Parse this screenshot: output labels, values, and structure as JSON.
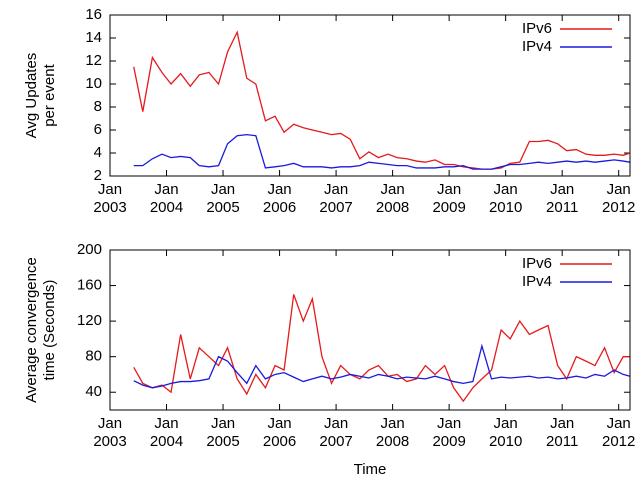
{
  "chart_data": [
    {
      "type": "line",
      "ylabel": [
        "Avg Updates",
        "per event"
      ],
      "legend": "top-right",
      "grid": false,
      "xlim": [
        2003,
        2012.2
      ],
      "ylim": [
        2,
        16
      ],
      "xticks": [
        {
          "value": 2003,
          "label": "Jan 2003"
        },
        {
          "value": 2004,
          "label": "Jan 2004"
        },
        {
          "value": 2005,
          "label": "Jan 2005"
        },
        {
          "value": 2006,
          "label": "Jan 2006"
        },
        {
          "value": 2007,
          "label": "Jan 2007"
        },
        {
          "value": 2008,
          "label": "Jan 2008"
        },
        {
          "value": 2009,
          "label": "Jan 2009"
        },
        {
          "value": 2010,
          "label": "Jan 2010"
        },
        {
          "value": 2011,
          "label": "Jan 2011"
        },
        {
          "value": 2012,
          "label": "Jan 2012"
        }
      ],
      "yticks": [
        2,
        4,
        6,
        8,
        10,
        12,
        14,
        16
      ],
      "x": [
        2003.42,
        2003.58,
        2003.75,
        2003.92,
        2004.08,
        2004.25,
        2004.42,
        2004.58,
        2004.75,
        2004.92,
        2005.08,
        2005.25,
        2005.42,
        2005.58,
        2005.75,
        2005.92,
        2006.08,
        2006.25,
        2006.42,
        2006.58,
        2006.75,
        2006.92,
        2007.08,
        2007.25,
        2007.42,
        2007.58,
        2007.75,
        2007.92,
        2008.08,
        2008.25,
        2008.42,
        2008.58,
        2008.75,
        2008.92,
        2009.08,
        2009.25,
        2009.42,
        2009.58,
        2009.75,
        2009.92,
        2010.08,
        2010.25,
        2010.42,
        2010.58,
        2010.75,
        2010.92,
        2011.08,
        2011.25,
        2011.42,
        2011.58,
        2011.75,
        2011.92,
        2012.08,
        2012.2
      ],
      "series": [
        {
          "name": "IPv6",
          "color": "#e41a1c",
          "values": [
            11.5,
            7.6,
            12.3,
            11,
            10,
            10.9,
            9.8,
            10.8,
            11,
            10,
            12.8,
            14.5,
            10.5,
            10,
            6.8,
            7.2,
            5.8,
            6.5,
            6.2,
            6,
            5.8,
            5.6,
            5.7,
            5.2,
            3.5,
            4.1,
            3.6,
            3.9,
            3.6,
            3.5,
            3.3,
            3.2,
            3.4,
            3,
            3,
            2.8,
            2.7,
            2.6,
            2.6,
            2.7,
            3.1,
            3.2,
            5,
            5,
            5.1,
            4.8,
            4.2,
            4.3,
            3.9,
            3.8,
            3.8,
            3.9,
            3.8,
            4.0
          ]
        },
        {
          "name": "IPv4",
          "color": "#1a1adf",
          "values": [
            2.9,
            2.9,
            3.5,
            3.9,
            3.6,
            3.7,
            3.6,
            2.9,
            2.8,
            2.9,
            4.8,
            5.5,
            5.6,
            5.5,
            2.7,
            2.8,
            2.9,
            3.1,
            2.8,
            2.8,
            2.8,
            2.7,
            2.8,
            2.8,
            2.9,
            3.2,
            3.1,
            3.0,
            2.9,
            2.9,
            2.7,
            2.7,
            2.7,
            2.8,
            2.8,
            2.9,
            2.6,
            2.6,
            2.6,
            2.8,
            3.0,
            3.0,
            3.1,
            3.2,
            3.1,
            3.2,
            3.3,
            3.2,
            3.3,
            3.2,
            3.3,
            3.4,
            3.3,
            3.2
          ]
        }
      ]
    },
    {
      "type": "line",
      "ylabel": [
        "Average convergence",
        "time (Seconds)"
      ],
      "xlabel": "Time",
      "legend": "top-right",
      "grid": false,
      "xlim": [
        2003,
        2012.2
      ],
      "ylim": [
        20,
        200
      ],
      "xticks": [
        {
          "value": 2003,
          "label": "Jan 2003"
        },
        {
          "value": 2004,
          "label": "Jan 2004"
        },
        {
          "value": 2005,
          "label": "Jan 2005"
        },
        {
          "value": 2006,
          "label": "Jan 2006"
        },
        {
          "value": 2007,
          "label": "Jan 2007"
        },
        {
          "value": 2008,
          "label": "Jan 2008"
        },
        {
          "value": 2009,
          "label": "Jan 2009"
        },
        {
          "value": 2010,
          "label": "Jan 2010"
        },
        {
          "value": 2011,
          "label": "Jan 2011"
        },
        {
          "value": 2012,
          "label": "Jan 2012"
        }
      ],
      "yticks": [
        40,
        80,
        120,
        160,
        200
      ],
      "x": [
        2003.42,
        2003.58,
        2003.75,
        2003.92,
        2004.08,
        2004.25,
        2004.42,
        2004.58,
        2004.75,
        2004.92,
        2005.08,
        2005.25,
        2005.42,
        2005.58,
        2005.75,
        2005.92,
        2006.08,
        2006.25,
        2006.42,
        2006.58,
        2006.75,
        2006.92,
        2007.08,
        2007.25,
        2007.42,
        2007.58,
        2007.75,
        2007.92,
        2008.08,
        2008.25,
        2008.42,
        2008.58,
        2008.75,
        2008.92,
        2009.08,
        2009.25,
        2009.42,
        2009.58,
        2009.75,
        2009.92,
        2010.08,
        2010.25,
        2010.42,
        2010.58,
        2010.75,
        2010.92,
        2011.08,
        2011.25,
        2011.42,
        2011.58,
        2011.75,
        2011.92,
        2012.08,
        2012.2
      ],
      "series": [
        {
          "name": "IPv6",
          "color": "#e41a1c",
          "values": [
            68,
            50,
            45,
            48,
            40,
            105,
            55,
            90,
            80,
            70,
            90,
            55,
            38,
            60,
            45,
            70,
            65,
            150,
            120,
            145,
            80,
            50,
            70,
            60,
            55,
            65,
            70,
            58,
            60,
            52,
            55,
            70,
            60,
            70,
            45,
            30,
            45,
            55,
            65,
            110,
            100,
            120,
            105,
            110,
            115,
            70,
            55,
            80,
            75,
            70,
            90,
            62,
            80,
            80
          ]
        },
        {
          "name": "IPv4",
          "color": "#1a1adf",
          "values": [
            53,
            48,
            45,
            47,
            50,
            52,
            52,
            53,
            55,
            80,
            75,
            62,
            50,
            70,
            55,
            60,
            62,
            57,
            52,
            55,
            58,
            55,
            57,
            60,
            58,
            56,
            60,
            58,
            55,
            57,
            56,
            55,
            58,
            55,
            52,
            50,
            52,
            92,
            55,
            57,
            56,
            57,
            58,
            56,
            57,
            55,
            56,
            58,
            56,
            60,
            58,
            65,
            60,
            58
          ]
        }
      ]
    }
  ]
}
